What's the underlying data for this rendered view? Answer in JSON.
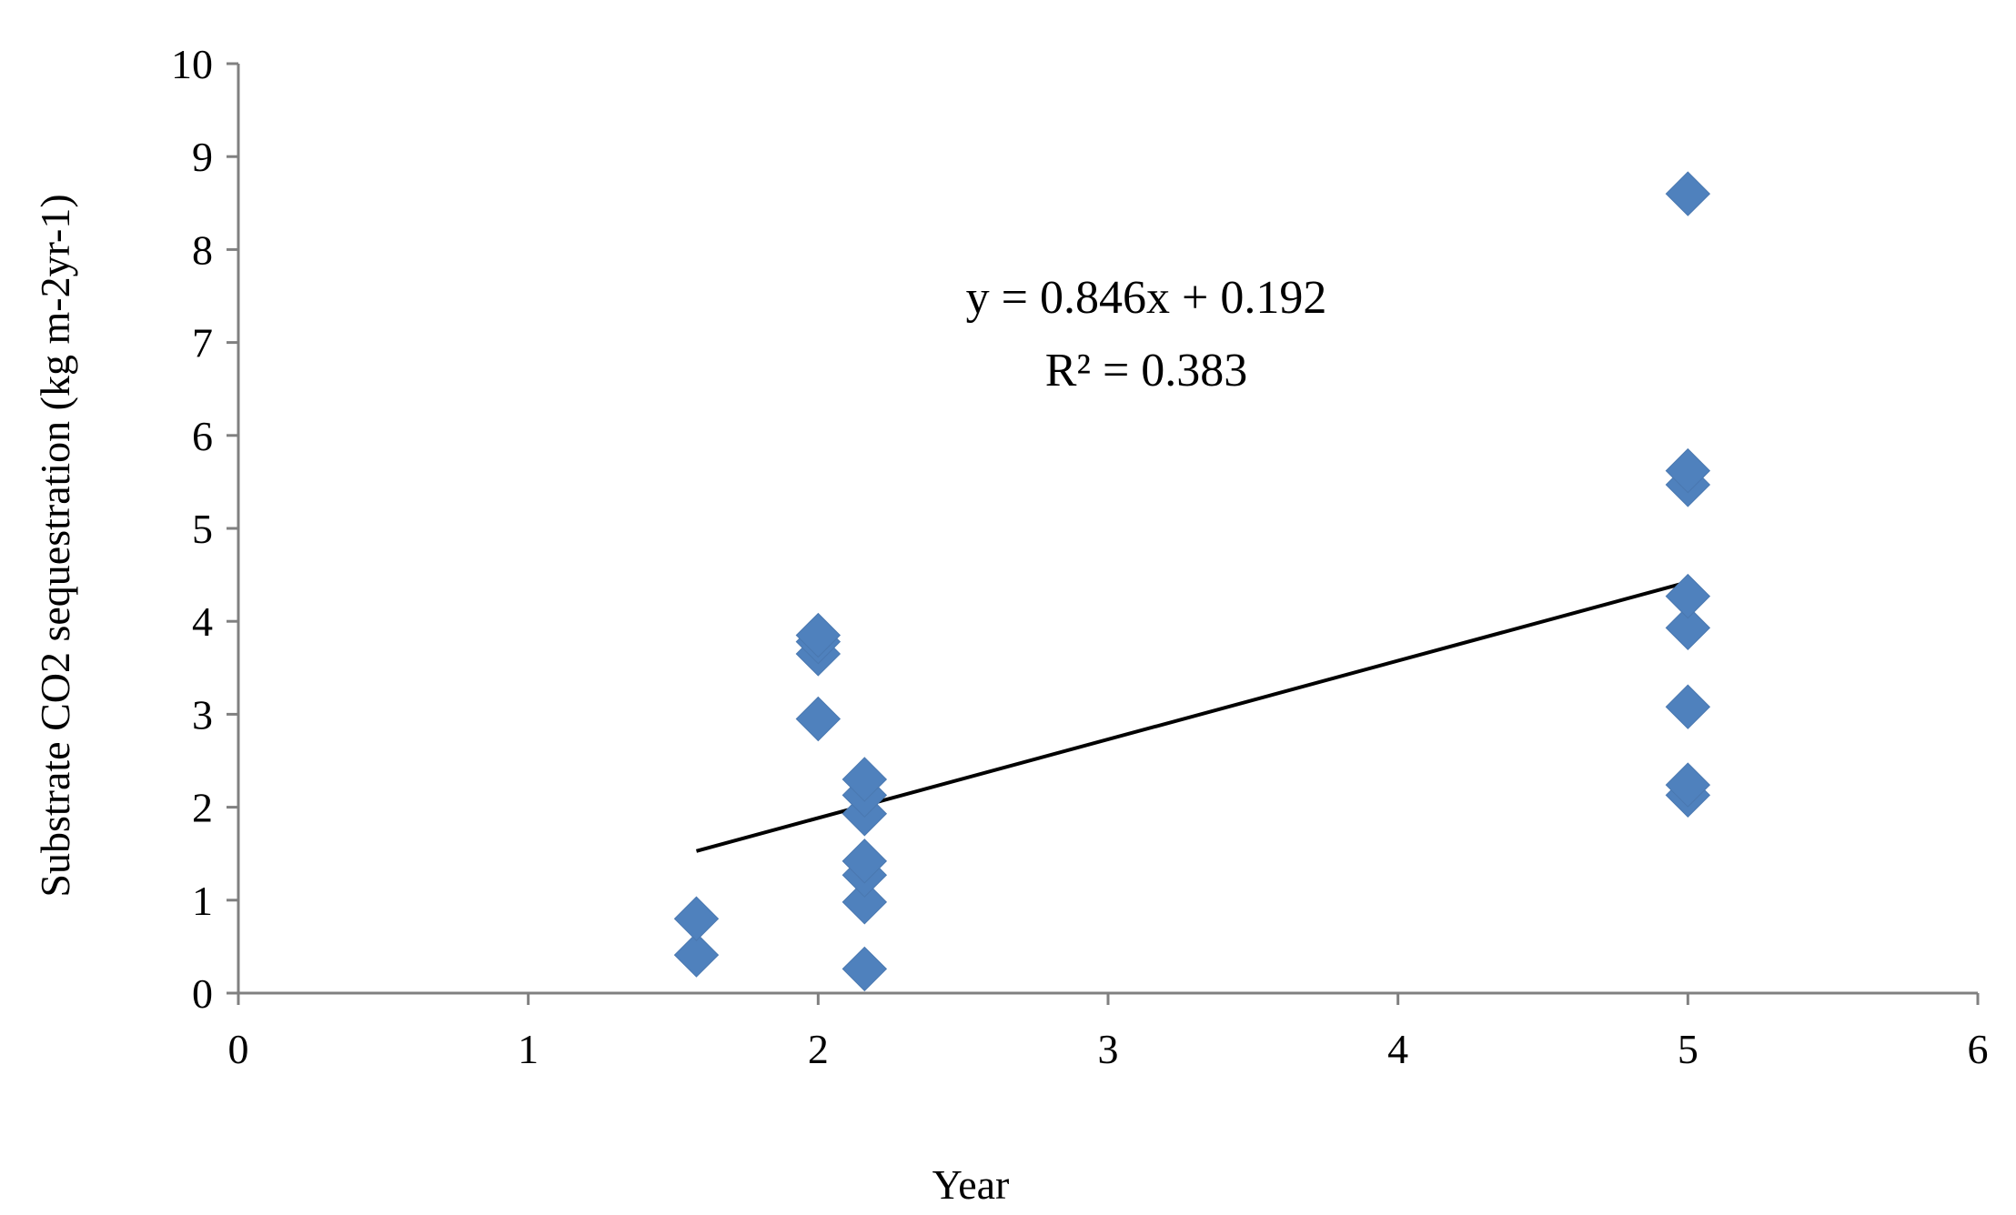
{
  "chart_data": {
    "type": "scatter",
    "title": "",
    "xlabel": "Year",
    "ylabel": "Substrate CO2 sequestration  (kg m-2yr-1)",
    "xlim": [
      0,
      6
    ],
    "ylim": [
      0,
      10
    ],
    "x_ticks": [
      "0",
      "1",
      "2",
      "3",
      "4",
      "5",
      "6"
    ],
    "y_ticks": [
      "0",
      "1",
      "2",
      "3",
      "4",
      "5",
      "6",
      "7",
      "8",
      "9",
      "10"
    ],
    "grid": false,
    "legend": "none",
    "marker_color": "#4F81BD",
    "trendline_color": "#000000",
    "series": [
      {
        "points": [
          {
            "x": 1.58,
            "y": 0.41
          },
          {
            "x": 1.58,
            "y": 0.8
          },
          {
            "x": 2.0,
            "y": 2.95
          },
          {
            "x": 2.0,
            "y": 3.65
          },
          {
            "x": 2.0,
            "y": 3.78
          },
          {
            "x": 2.0,
            "y": 3.85
          },
          {
            "x": 2.16,
            "y": 0.26
          },
          {
            "x": 2.16,
            "y": 0.98
          },
          {
            "x": 2.16,
            "y": 1.27
          },
          {
            "x": 2.16,
            "y": 1.42
          },
          {
            "x": 2.16,
            "y": 1.93
          },
          {
            "x": 2.16,
            "y": 2.13
          },
          {
            "x": 2.16,
            "y": 2.3
          },
          {
            "x": 5.0,
            "y": 2.13
          },
          {
            "x": 5.0,
            "y": 2.24
          },
          {
            "x": 5.0,
            "y": 3.08
          },
          {
            "x": 5.0,
            "y": 3.93
          },
          {
            "x": 5.0,
            "y": 4.27
          },
          {
            "x": 5.0,
            "y": 5.47
          },
          {
            "x": 5.0,
            "y": 5.62
          },
          {
            "x": 5.0,
            "y": 8.6
          }
        ]
      }
    ],
    "trendline": {
      "slope": 0.846,
      "intercept": 0.192,
      "x_start": 1.58,
      "x_end": 5.0
    },
    "annotations": {
      "equation": "y = 0.846x + 0.192",
      "r_squared": "R² = 0.383"
    }
  }
}
